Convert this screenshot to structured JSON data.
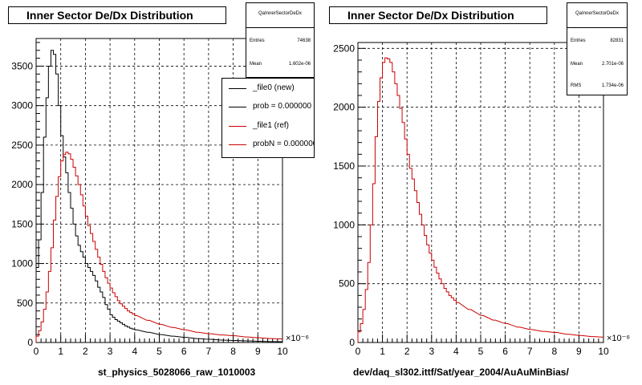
{
  "chart_data": [
    {
      "type": "histogram",
      "title": "Inner Sector De/Dx Distribution",
      "xlabel": "st_physics_5028066_raw_1010003",
      "x_exponent": "×10⁻⁶",
      "xlim": [
        0,
        10
      ],
      "ylim": [
        0,
        3850
      ],
      "xticks": [
        "0",
        "1",
        "2",
        "3",
        "4",
        "5",
        "6",
        "7",
        "8",
        "9",
        "10"
      ],
      "yticks": [
        "0",
        "500",
        "1000",
        "1500",
        "2000",
        "2500",
        "3000",
        "3500"
      ],
      "grid": true,
      "stats": {
        "title": "QaInnerSectorDeDx",
        "rows": [
          {
            "label": "Entries",
            "value": "74638"
          },
          {
            "label": "Mean",
            "value": "1.602e-06"
          }
        ]
      },
      "legend": {
        "placement": "top-right",
        "entries": [
          {
            "label": "_file0 (new)",
            "color": "#000000"
          },
          {
            "label": "prob = 0.000000",
            "color": "#000000"
          },
          {
            "label": "_file1 (ref)",
            "color": "#cc0000"
          },
          {
            "label": "probN = 0.000000",
            "color": "#cc0000"
          }
        ]
      },
      "series": [
        {
          "name": "_file0 (new)",
          "color": "#000000",
          "x": [
            0.0,
            0.1,
            0.2,
            0.3,
            0.4,
            0.5,
            0.6,
            0.7,
            0.8,
            0.9,
            1.0,
            1.1,
            1.2,
            1.3,
            1.4,
            1.5,
            1.6,
            1.7,
            1.8,
            1.9,
            2.0,
            2.1,
            2.2,
            2.3,
            2.4,
            2.5,
            2.6,
            2.7,
            2.8,
            2.9,
            3.0,
            3.1,
            3.2,
            3.3,
            3.4,
            3.5,
            3.6,
            3.7,
            3.8,
            3.9,
            4.0,
            4.5,
            5.0,
            5.5,
            6.0,
            6.5,
            7.0,
            7.5,
            8.0,
            8.5,
            9.0,
            9.5,
            10.0
          ],
          "y": [
            950,
            1300,
            1900,
            2600,
            3100,
            3500,
            3700,
            3650,
            3400,
            3000,
            2620,
            2350,
            2150,
            1900,
            1700,
            1500,
            1350,
            1230,
            1150,
            1080,
            1000,
            950,
            900,
            850,
            780,
            700,
            640,
            570,
            480,
            420,
            350,
            320,
            290,
            270,
            250,
            230,
            210,
            195,
            180,
            170,
            160,
            130,
            100,
            80,
            65,
            50,
            40,
            30,
            25,
            20,
            15,
            12,
            10
          ]
        },
        {
          "name": "_file1 (ref)",
          "color": "#cc0000",
          "x": [
            0.0,
            0.1,
            0.2,
            0.3,
            0.4,
            0.5,
            0.6,
            0.7,
            0.8,
            0.9,
            1.0,
            1.1,
            1.2,
            1.3,
            1.4,
            1.5,
            1.6,
            1.7,
            1.8,
            1.9,
            2.0,
            2.1,
            2.2,
            2.3,
            2.4,
            2.5,
            2.6,
            2.7,
            2.8,
            2.9,
            3.0,
            3.1,
            3.2,
            3.3,
            3.4,
            3.5,
            3.6,
            3.7,
            3.8,
            3.9,
            4.0,
            4.5,
            5.0,
            5.5,
            6.0,
            6.5,
            7.0,
            7.5,
            8.0,
            8.5,
            9.0,
            9.5,
            10.0
          ],
          "y": [
            80,
            150,
            260,
            420,
            640,
            900,
            1200,
            1550,
            1850,
            2100,
            2300,
            2380,
            2410,
            2390,
            2320,
            2220,
            2110,
            2000,
            1870,
            1730,
            1600,
            1480,
            1380,
            1280,
            1180,
            1080,
            990,
            900,
            820,
            750,
            690,
            630,
            580,
            530,
            490,
            460,
            430,
            400,
            380,
            360,
            340,
            280,
            230,
            190,
            160,
            130,
            110,
            95,
            85,
            70,
            60,
            50,
            45
          ]
        }
      ]
    },
    {
      "type": "histogram",
      "title": "Inner Sector De/Dx Distribution",
      "xlabel": "dev/daq_sl302.ittf/Sat/year_2004/AuAuMinBias/",
      "x_exponent": "×10⁻⁶",
      "xlim": [
        0,
        10
      ],
      "ylim": [
        0,
        2550
      ],
      "xticks": [
        "0",
        "1",
        "2",
        "3",
        "4",
        "5",
        "6",
        "7",
        "8",
        "9",
        "10"
      ],
      "yticks": [
        "0",
        "500",
        "1000",
        "1500",
        "2000",
        "2500"
      ],
      "grid": true,
      "stats": {
        "title": "QaInnerSectorDeDx",
        "rows": [
          {
            "label": "Entries",
            "value": "82831"
          },
          {
            "label": "Mean",
            "value": "2.701e-06"
          },
          {
            "label": "RMS",
            "value": "1.734e-06"
          }
        ]
      },
      "series": [
        {
          "name": "",
          "color": "#cc0000",
          "x": [
            0.0,
            0.1,
            0.2,
            0.3,
            0.4,
            0.5,
            0.6,
            0.7,
            0.8,
            0.9,
            1.0,
            1.1,
            1.2,
            1.3,
            1.4,
            1.5,
            1.6,
            1.7,
            1.8,
            1.9,
            2.0,
            2.1,
            2.2,
            2.3,
            2.4,
            2.5,
            2.6,
            2.7,
            2.8,
            2.9,
            3.0,
            3.1,
            3.2,
            3.3,
            3.4,
            3.5,
            3.6,
            3.7,
            3.8,
            3.9,
            4.0,
            4.5,
            5.0,
            5.5,
            6.0,
            6.5,
            7.0,
            7.5,
            8.0,
            8.5,
            9.0,
            9.5,
            10.0
          ],
          "y": [
            90,
            160,
            280,
            450,
            680,
            1000,
            1350,
            1750,
            2050,
            2250,
            2380,
            2420,
            2410,
            2380,
            2300,
            2200,
            2100,
            1990,
            1870,
            1730,
            1600,
            1480,
            1390,
            1290,
            1190,
            1090,
            1000,
            910,
            830,
            760,
            700,
            640,
            590,
            540,
            500,
            460,
            430,
            400,
            380,
            360,
            340,
            280,
            230,
            190,
            160,
            130,
            110,
            95,
            85,
            70,
            60,
            50,
            45
          ]
        }
      ]
    }
  ]
}
